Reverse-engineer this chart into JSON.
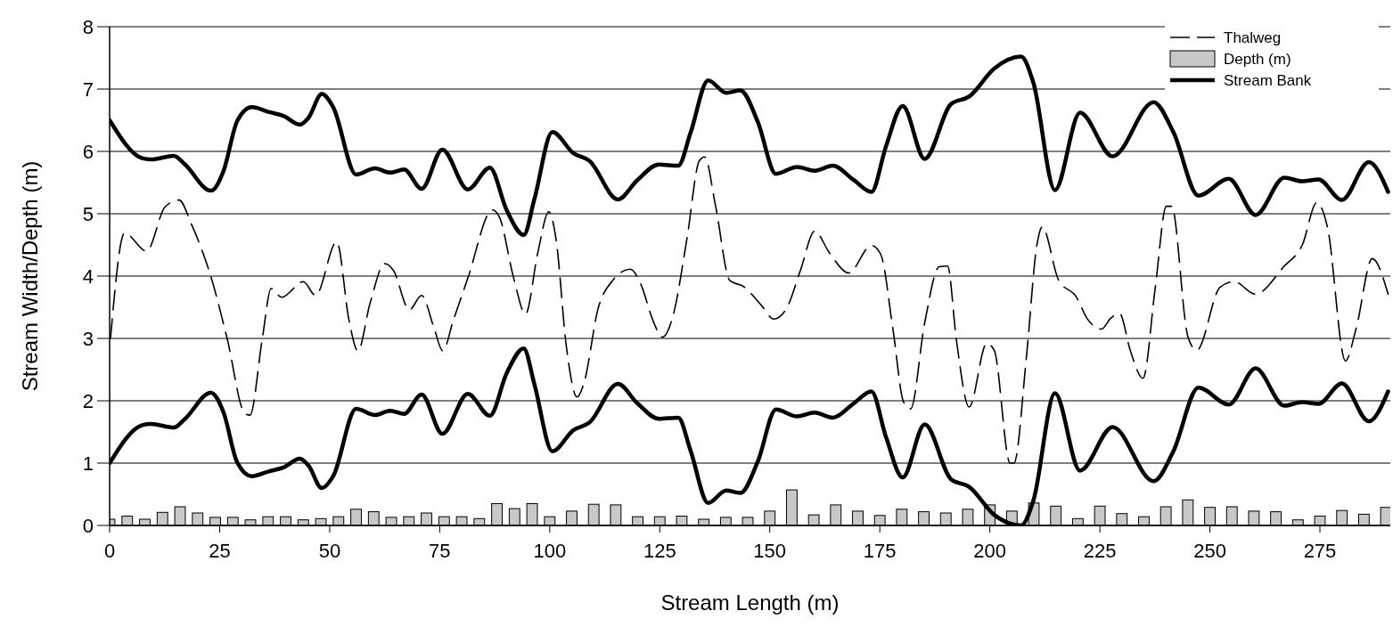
{
  "chart_data": {
    "type": "line",
    "xlabel": "Stream Length (m)",
    "ylabel": "Stream Width/Depth (m)",
    "xlim": [
      0,
      291
    ],
    "ylim": [
      0,
      8
    ],
    "xticks": [
      0,
      25,
      50,
      75,
      100,
      125,
      150,
      175,
      200,
      225,
      250,
      275
    ],
    "yticks": [
      0,
      1,
      2,
      3,
      4,
      5,
      6,
      7,
      8
    ],
    "grid": "y",
    "legend": "top right",
    "series": [
      {
        "name": "Thalweg",
        "type": "line",
        "line_style": "dashed",
        "color": "#000000",
        "x": [
          0.2,
          3.4,
          8.4,
          12.6,
          15.8,
          18.6,
          23.1,
          26.7,
          30.7,
          31.9,
          34.7,
          36.7,
          39.1,
          44,
          46.8,
          51.6,
          54.4,
          56.4,
          59.2,
          62.5,
          64.5,
          68.1,
          70.9,
          73.7,
          75.7,
          78.1,
          81.4,
          87,
          88.6,
          91.8,
          94.5,
          97.3,
          99.8,
          101.4,
          103.8,
          106.2,
          107.8,
          111,
          114.3,
          118.3,
          120.7,
          123.5,
          125.6,
          128,
          131.2,
          134,
          135.2,
          137.7,
          140.9,
          144.1,
          148.1,
          150.9,
          153.8,
          157,
          160.2,
          163.5,
          167.9,
          173.1,
          175.2,
          178,
          180.4,
          182,
          185.2,
          188.5,
          190.4,
          192.4,
          195.3,
          199.3,
          201,
          204.6,
          205.5,
          208.3,
          210.7,
          211.9,
          215.6,
          219.7,
          222.1,
          225.4,
          227.4,
          229.5,
          231.9,
          234.8,
          237.6,
          240.1,
          241.3,
          245,
          247,
          252.3,
          255.5,
          260.4,
          266.9,
          271,
          274.3,
          276.7,
          280.8,
          283.2,
          286.9,
          290.5
        ],
        "values": [
          3.0,
          4.69,
          4.4,
          5.11,
          5.22,
          4.83,
          3.97,
          3.0,
          1.8,
          1.77,
          3.0,
          3.8,
          3.66,
          3.91,
          3.69,
          4.55,
          3.29,
          2.8,
          3.57,
          4.2,
          4.09,
          3.46,
          3.69,
          3.17,
          2.8,
          3.29,
          3.97,
          5.06,
          4.94,
          3.97,
          3.39,
          4.38,
          5.03,
          4.61,
          2.86,
          2.06,
          2.29,
          3.48,
          3.93,
          4.11,
          3.87,
          3.28,
          3.02,
          3.36,
          4.61,
          5.85,
          5.91,
          5.12,
          3.93,
          3.83,
          3.53,
          3.31,
          3.48,
          4.1,
          4.72,
          4.38,
          4.05,
          4.49,
          4.35,
          3.14,
          1.98,
          1.87,
          3.25,
          4.15,
          4.16,
          2.98,
          1.9,
          2.92,
          2.81,
          1.0,
          1.0,
          2.69,
          4.5,
          4.79,
          3.94,
          3.66,
          3.32,
          3.15,
          3.32,
          3.4,
          2.81,
          2.36,
          3.82,
          5.12,
          5.12,
          3.03,
          2.81,
          3.82,
          3.91,
          3.71,
          4.16,
          4.5,
          5.18,
          4.79,
          2.64,
          3.15,
          4.28,
          3.71
        ]
      },
      {
        "name": "Depth (m)",
        "type": "bar",
        "color": "#c8c8c8",
        "x": [
          0,
          4,
          8,
          12,
          16,
          20,
          24,
          28,
          32,
          36,
          40,
          44,
          48,
          52,
          56,
          60,
          64,
          68,
          72,
          76,
          80,
          84,
          88,
          92,
          96,
          100,
          105,
          110,
          115,
          120,
          125,
          130,
          135,
          140,
          145,
          150,
          155,
          160,
          165,
          170,
          175,
          180,
          185,
          190,
          195,
          200,
          205,
          210,
          215,
          220,
          225,
          230,
          235,
          240,
          245,
          250,
          255,
          260,
          265,
          270,
          275,
          280,
          285,
          290
        ],
        "values": [
          0.1,
          0.15,
          0.1,
          0.21,
          0.3,
          0.2,
          0.13,
          0.13,
          0.09,
          0.14,
          0.14,
          0.09,
          0.11,
          0.14,
          0.26,
          0.22,
          0.13,
          0.14,
          0.2,
          0.14,
          0.14,
          0.11,
          0.35,
          0.27,
          0.35,
          0.14,
          0.23,
          0.34,
          0.33,
          0.14,
          0.14,
          0.15,
          0.1,
          0.13,
          0.13,
          0.23,
          0.57,
          0.17,
          0.33,
          0.23,
          0.16,
          0.26,
          0.22,
          0.2,
          0.26,
          0.33,
          0.23,
          0.36,
          0.31,
          0.11,
          0.31,
          0.19,
          0.14,
          0.3,
          0.41,
          0.29,
          0.3,
          0.23,
          0.22,
          0.09,
          0.15,
          0.24,
          0.18,
          0.29
        ]
      },
      {
        "name": "Stream Bank",
        "line_style": "solid",
        "color": "#000000",
        "x": [
          0,
          7.4,
          9.4,
          14.6,
          17,
          23,
          25.9,
          29,
          32.3,
          36.3,
          39.5,
          43.2,
          45.2,
          48.2,
          50.8,
          56,
          60.3,
          63.7,
          66.9,
          70.9,
          75.6,
          81.4,
          86.4,
          90.2,
          94.1,
          96.5,
          100.6,
          105.4,
          109,
          115.5,
          119.9,
          124.8,
          129.2,
          132,
          136,
          140.1,
          143.3,
          147.3,
          151.4,
          156.2,
          160.2,
          164.3,
          169.1,
          173.1,
          176.4,
          180.2,
          185.2,
          191.2,
          195.3,
          201,
          207.1,
          209.9,
          214.8,
          220.5,
          227.9,
          237.2,
          241.7,
          247.4,
          254.3,
          260.4,
          266.9,
          271,
          274.7,
          280,
          286.1,
          290.5
        ],
        "values": [
          6.5,
          5.89,
          5.87,
          5.93,
          5.8,
          5.37,
          5.69,
          6.49,
          6.71,
          6.63,
          6.57,
          6.43,
          6.54,
          6.92,
          6.71,
          5.63,
          5.73,
          5.66,
          5.71,
          5.4,
          6.03,
          5.39,
          5.74,
          5.06,
          4.66,
          5.23,
          6.31,
          5.97,
          5.85,
          5.23,
          5.54,
          5.79,
          5.77,
          6.3,
          7.14,
          6.94,
          6.98,
          6.47,
          5.64,
          5.75,
          5.69,
          5.77,
          5.54,
          5.35,
          6.08,
          6.73,
          5.88,
          6.76,
          6.88,
          7.33,
          7.52,
          7.1,
          5.38,
          6.62,
          5.92,
          6.79,
          6.31,
          5.29,
          5.56,
          4.98,
          5.58,
          5.52,
          5.55,
          5.22,
          5.83,
          5.35
        ]
      },
      {
        "line_style": "solid",
        "color": "#000000",
        "x": [
          0,
          7.4,
          9.4,
          14.6,
          17,
          23,
          25.9,
          29,
          32.3,
          36.3,
          39.5,
          43.2,
          45.2,
          48.2,
          50.8,
          56,
          60.3,
          63.7,
          66.9,
          70.9,
          75.6,
          81.4,
          86.4,
          90.2,
          94.1,
          96.5,
          100.6,
          105.4,
          109,
          115.5,
          119.9,
          124.8,
          129.2,
          132,
          136,
          140.1,
          143.3,
          147.3,
          151.4,
          156.2,
          160.2,
          164.3,
          169.1,
          173.1,
          176.4,
          180.2,
          185.2,
          191.2,
          195.3,
          201,
          207.1,
          209.9,
          214.8,
          220.5,
          227.9,
          237.2,
          241.7,
          247.4,
          254.3,
          260.4,
          266.9,
          271,
          274.7,
          280,
          286.1,
          290.5
        ],
        "values": [
          1.0,
          1.61,
          1.63,
          1.57,
          1.7,
          2.13,
          1.81,
          1.01,
          0.79,
          0.87,
          0.93,
          1.07,
          0.96,
          0.6,
          0.79,
          1.87,
          1.77,
          1.84,
          1.79,
          2.1,
          1.47,
          2.11,
          1.76,
          2.44,
          2.84,
          2.27,
          1.19,
          1.53,
          1.65,
          2.27,
          1.96,
          1.71,
          1.73,
          1.2,
          0.36,
          0.56,
          0.52,
          1.03,
          1.86,
          1.75,
          1.81,
          1.73,
          1.96,
          2.15,
          1.42,
          0.77,
          1.62,
          0.74,
          0.62,
          0.17,
          0.0,
          0.4,
          2.12,
          0.88,
          1.58,
          0.71,
          1.19,
          2.21,
          1.94,
          2.52,
          1.92,
          1.98,
          1.95,
          2.28,
          1.67,
          2.15
        ]
      }
    ]
  }
}
